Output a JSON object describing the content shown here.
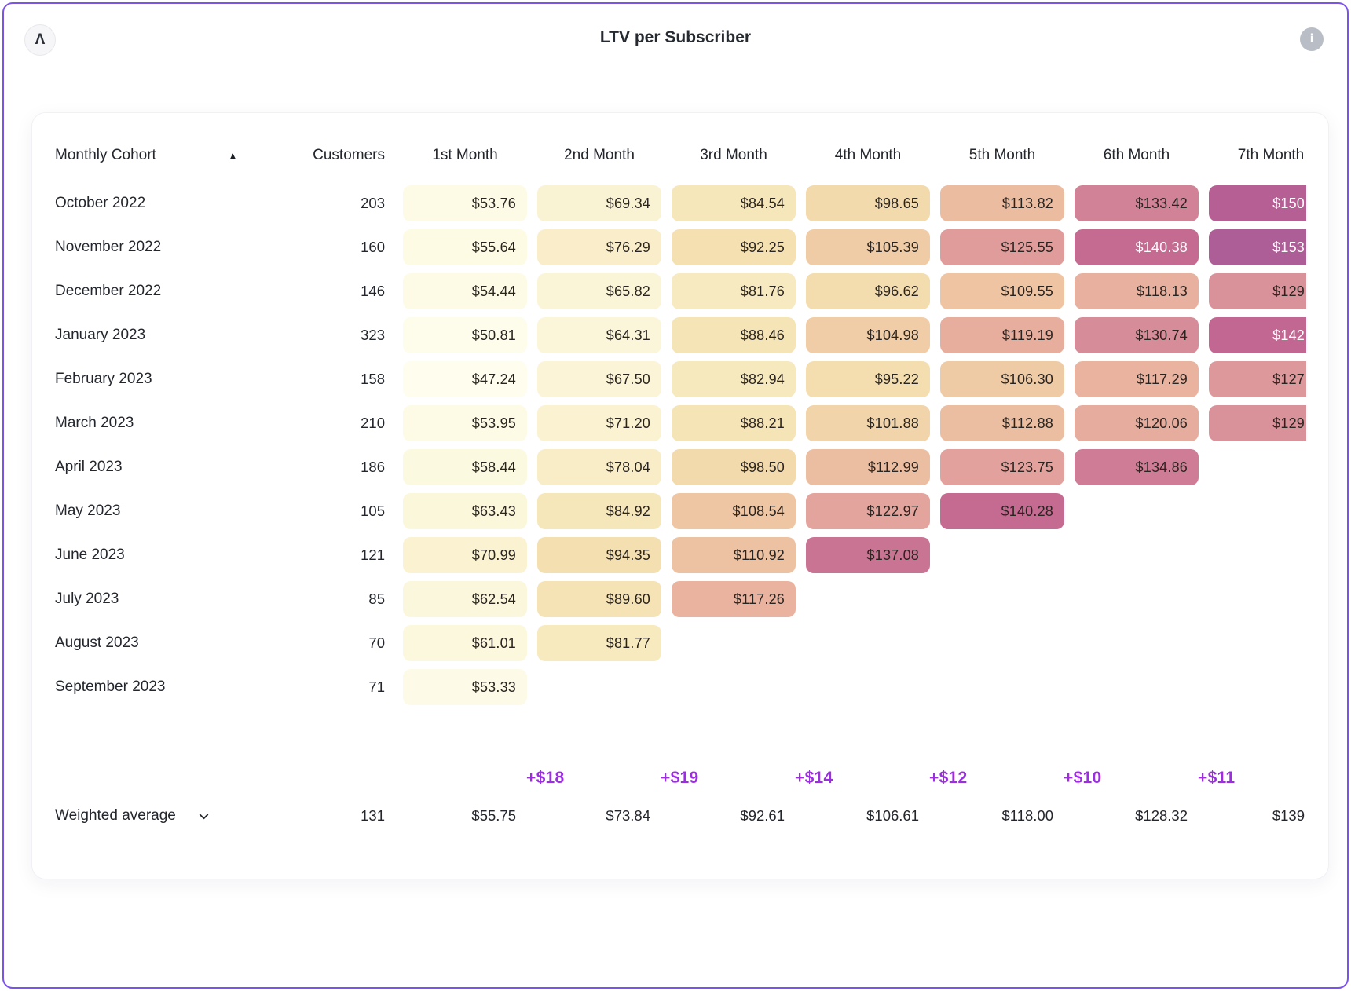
{
  "app": {
    "logo_glyph": "Λ",
    "info_glyph": "i"
  },
  "colors": {
    "frame_border": "#7c53e8",
    "title_text": "#262a31",
    "body_text": "#23262d",
    "delta_text": "#9b2fe0",
    "info_icon_bg": "#b9bdc5",
    "logo_bg": "#f6f6f8",
    "logo_border": "#e7e8ec",
    "card_border": "#f0f1f4",
    "heat_text_dark": "#2a2420",
    "heat_text_light": "#ffffff",
    "heat_white_text_min": 140.3,
    "heat_ramp": [
      [
        47,
        "#fefdee"
      ],
      [
        55,
        "#fdfbe5"
      ],
      [
        65,
        "#fbf6d9"
      ],
      [
        75,
        "#f9efcb"
      ],
      [
        85,
        "#f6e7ba"
      ],
      [
        95,
        "#f4deaf"
      ],
      [
        100,
        "#f2d8ab"
      ],
      [
        107,
        "#efc9a4"
      ],
      [
        114,
        "#ecbca1"
      ],
      [
        120,
        "#e6ac9e"
      ],
      [
        126,
        "#df9b9b"
      ],
      [
        131,
        "#d78c99"
      ],
      [
        136,
        "#cc7795"
      ],
      [
        141,
        "#c46991"
      ],
      [
        146,
        "#bb6193"
      ],
      [
        151,
        "#b35f96"
      ],
      [
        155,
        "#a75c96"
      ]
    ]
  },
  "chart_data": {
    "type": "heatmap",
    "title": "LTV per Subscriber",
    "cohort_header": "Monthly Cohort",
    "sort_icon": "▲",
    "customers_header": "Customers",
    "month_headers": [
      "1st Month",
      "2nd Month",
      "3rd Month",
      "4th Month",
      "5th Month",
      "6th Month",
      "7th Month"
    ],
    "rows": [
      {
        "cohort": "October 2022",
        "customers": 203,
        "values": [
          53.76,
          69.34,
          84.54,
          98.65,
          113.82,
          133.42,
          "$150"
        ]
      },
      {
        "cohort": "November 2022",
        "customers": 160,
        "values": [
          55.64,
          76.29,
          92.25,
          105.39,
          125.55,
          140.38,
          "$153"
        ]
      },
      {
        "cohort": "December 2022",
        "customers": 146,
        "values": [
          54.44,
          65.82,
          81.76,
          96.62,
          109.55,
          118.13,
          "$129"
        ]
      },
      {
        "cohort": "January 2023",
        "customers": 323,
        "values": [
          50.81,
          64.31,
          88.46,
          104.98,
          119.19,
          130.74,
          "$142"
        ]
      },
      {
        "cohort": "February 2023",
        "customers": 158,
        "values": [
          47.24,
          67.5,
          82.94,
          95.22,
          106.3,
          117.29,
          "$127"
        ]
      },
      {
        "cohort": "March 2023",
        "customers": 210,
        "values": [
          53.95,
          71.2,
          88.21,
          101.88,
          112.88,
          120.06,
          "$129"
        ]
      },
      {
        "cohort": "April 2023",
        "customers": 186,
        "values": [
          58.44,
          78.04,
          98.5,
          112.99,
          123.75,
          134.86
        ]
      },
      {
        "cohort": "May 2023",
        "customers": 105,
        "values": [
          63.43,
          84.92,
          108.54,
          122.97,
          140.28
        ]
      },
      {
        "cohort": "June 2023",
        "customers": 121,
        "values": [
          70.99,
          94.35,
          110.92,
          137.08
        ]
      },
      {
        "cohort": "July 2023",
        "customers": 85,
        "values": [
          62.54,
          89.6,
          117.26
        ]
      },
      {
        "cohort": "August 2023",
        "customers": 70,
        "values": [
          61.01,
          81.77
        ]
      },
      {
        "cohort": "September 2023",
        "customers": 71,
        "values": [
          53.33
        ]
      }
    ],
    "footer": {
      "label": "Weighted average",
      "customers": 131,
      "values": [
        55.75,
        73.84,
        92.61,
        106.61,
        118.0,
        128.32,
        "$139"
      ],
      "deltas": [
        "+$18",
        "+$19",
        "+$14",
        "+$12",
        "+$10",
        "+$11"
      ]
    }
  }
}
